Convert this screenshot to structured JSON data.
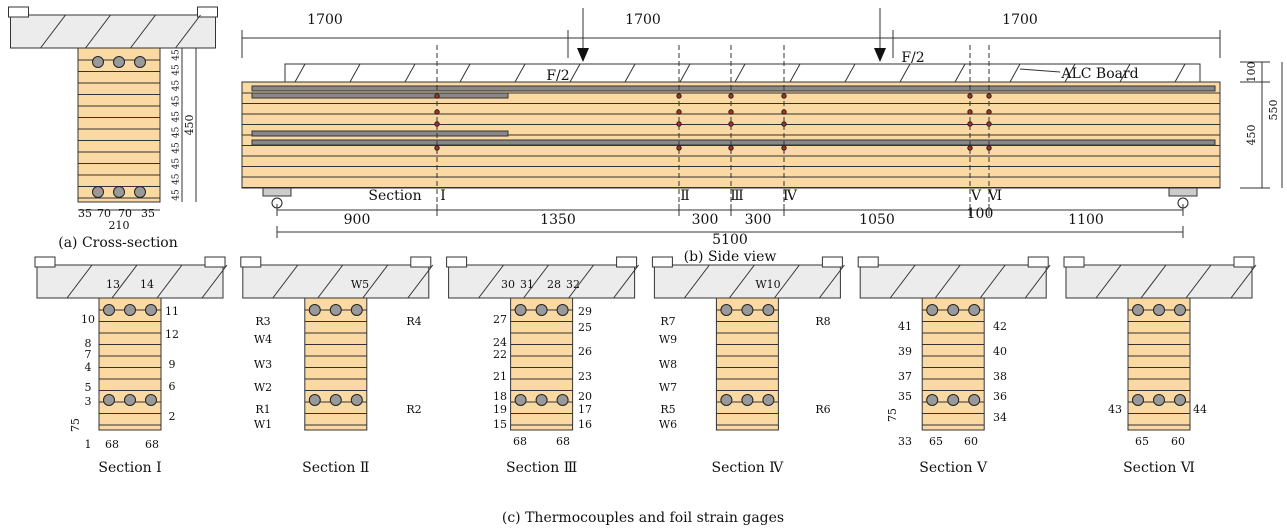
{
  "cross_section": {
    "caption": "(a) Cross-section",
    "right_dims": [
      "45",
      "45",
      "45",
      "45",
      "45",
      "45",
      "45",
      "45",
      "45",
      "45"
    ],
    "height_dim": "450",
    "bottom_dims": [
      "35",
      "70",
      "70",
      "35"
    ],
    "width_dim": "210"
  },
  "side_view": {
    "caption": "(b) Side view",
    "top_dims": [
      "1700",
      "1700",
      "1700"
    ],
    "loads": [
      "F/2",
      "F/2"
    ],
    "board_label": "ALC Board",
    "right_dims": [
      "100",
      "450",
      "550"
    ],
    "section_word": "Section",
    "sections": [
      "Ⅰ",
      "Ⅱ",
      "Ⅲ",
      "Ⅳ",
      "Ⅴ",
      "Ⅵ"
    ],
    "bottom_dims": [
      "900",
      "1350",
      "300",
      "300",
      "1050",
      "100",
      "1100"
    ],
    "total_dim": "5100"
  },
  "sections_view": {
    "caption": "(c) Thermocouples and foil strain gages",
    "sections": [
      {
        "title": "Section Ⅰ",
        "labels": [
          "13",
          "14",
          "11",
          "10",
          "12",
          "8",
          "7",
          "9",
          "4",
          "5",
          "6",
          "3",
          "2",
          "1",
          "75",
          "68",
          "68"
        ]
      },
      {
        "title": "Section Ⅱ",
        "labels": [
          "W5",
          "R3",
          "R4",
          "W4",
          "W3",
          "W2",
          "R1",
          "R2",
          "W1"
        ]
      },
      {
        "title": "Section Ⅲ",
        "labels": [
          "30",
          "31",
          "28",
          "32",
          "27",
          "29",
          "25",
          "24",
          "22",
          "26",
          "21",
          "23",
          "18",
          "20",
          "19",
          "17",
          "15",
          "16",
          "68",
          "68"
        ]
      },
      {
        "title": "Section Ⅳ",
        "labels": [
          "W10",
          "R7",
          "R8",
          "W9",
          "W8",
          "W7",
          "R5",
          "R6",
          "W6"
        ]
      },
      {
        "title": "Section Ⅴ",
        "labels": [
          "41",
          "42",
          "39",
          "40",
          "37",
          "38",
          "35",
          "36",
          "34",
          "33",
          "75",
          "65",
          "60"
        ]
      },
      {
        "title": "Section Ⅵ",
        "labels": [
          "43",
          "44",
          "65",
          "60"
        ]
      }
    ]
  }
}
